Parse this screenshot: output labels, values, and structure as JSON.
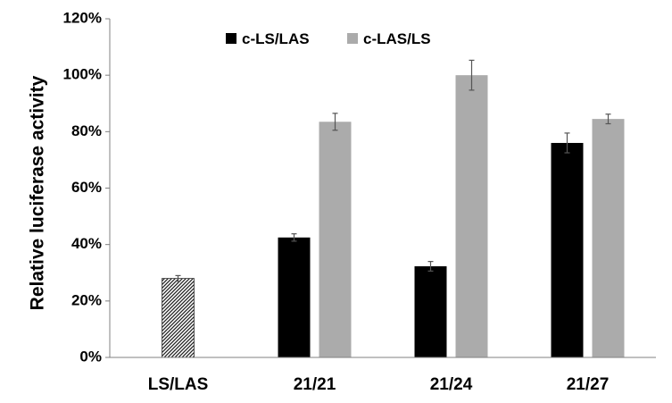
{
  "chart_data": {
    "type": "bar",
    "ylabel": "Relative luciferase activity",
    "xlabel": "",
    "ylim": [
      0,
      120
    ],
    "y_ticks": [
      "0%",
      "20%",
      "40%",
      "60%",
      "80%",
      "100%",
      "120%"
    ],
    "categories": [
      "LS/LAS",
      "21/21",
      "21/24",
      "21/27"
    ],
    "legend_position": "top",
    "grid": false,
    "series": [
      {
        "name": "c-LS/LAS",
        "color": "#000000",
        "values": [
          null,
          42.5,
          32.3,
          76.0
        ],
        "errors": [
          null,
          1.3,
          1.7,
          3.5
        ]
      },
      {
        "name": "c-LAS/LS",
        "color": "#ABABAB",
        "values": [
          null,
          83.5,
          100.0,
          84.5
        ],
        "errors": [
          null,
          3.0,
          5.3,
          1.7
        ]
      }
    ],
    "control": {
      "category": "LS/LAS",
      "value": 28.0,
      "error": 1.0,
      "fill": "hatched"
    }
  }
}
